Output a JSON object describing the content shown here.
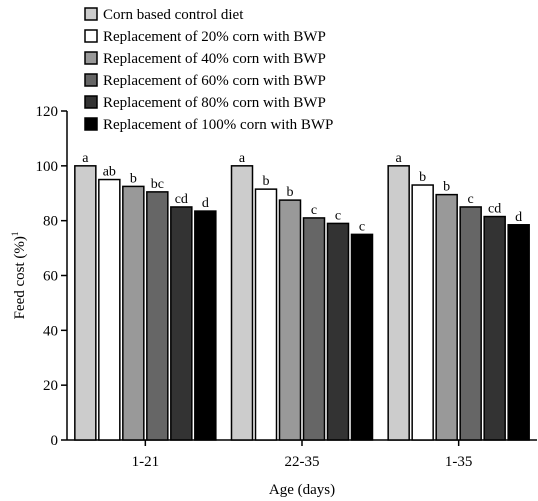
{
  "chart_data": {
    "type": "bar",
    "xlabel": "Age (days)",
    "ylabel": "Feed cost (%)",
    "ylabel_superscript": "1",
    "ylim": [
      0,
      120
    ],
    "yticks": [
      0,
      20,
      40,
      60,
      80,
      100,
      120
    ],
    "categories": [
      "1-21",
      "22-35",
      "1-35"
    ],
    "legend_position": "top",
    "series": [
      {
        "name": "Corn based control diet",
        "color": "#cccccc",
        "values": [
          100,
          100,
          100
        ],
        "labels": [
          "a",
          "a",
          "a"
        ]
      },
      {
        "name": "Replacement of 20% corn with BWP",
        "color": "#ffffff",
        "values": [
          95,
          91.5,
          93
        ],
        "labels": [
          "ab",
          "b",
          "b"
        ]
      },
      {
        "name": "Replacement of 40% corn with BWP",
        "color": "#999999",
        "values": [
          92.5,
          87.5,
          89.5
        ],
        "labels": [
          "b",
          "b",
          "b"
        ]
      },
      {
        "name": "Replacement of 60% corn with BWP",
        "color": "#666666",
        "values": [
          90.5,
          81,
          85
        ],
        "labels": [
          "bc",
          "c",
          "c"
        ]
      },
      {
        "name": "Replacement of 80% corn with BWP",
        "color": "#333333",
        "values": [
          85,
          79,
          81.5
        ],
        "labels": [
          "cd",
          "c",
          "cd"
        ]
      },
      {
        "name": "Replacement of 100% corn with BWP",
        "color": "#000000",
        "values": [
          83.5,
          75,
          78.5
        ],
        "labels": [
          "d",
          "c",
          "d"
        ]
      }
    ]
  }
}
